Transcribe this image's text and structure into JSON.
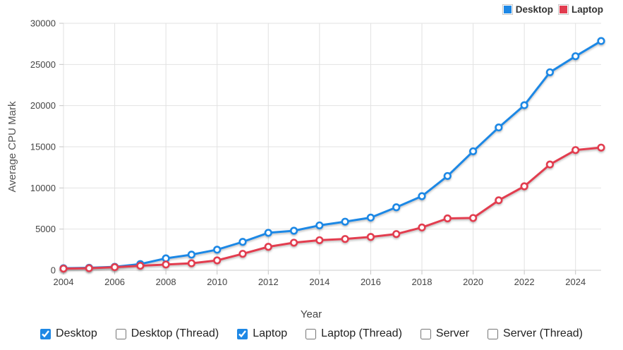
{
  "chart_data": {
    "type": "line",
    "title": "",
    "xlabel": "Year",
    "ylabel": "Average CPU Mark",
    "x": [
      2004,
      2005,
      2006,
      2007,
      2008,
      2009,
      2010,
      2011,
      2012,
      2013,
      2014,
      2015,
      2016,
      2017,
      2018,
      2019,
      2020,
      2021,
      2022,
      2023,
      2024,
      2025
    ],
    "series": [
      {
        "name": "Desktop",
        "color": "#1E88E5",
        "values": [
          250,
          300,
          420,
          750,
          1450,
          1900,
          2500,
          3450,
          4550,
          4800,
          5450,
          5900,
          6400,
          7650,
          9000,
          11450,
          14450,
          17350,
          20050,
          24050,
          26000,
          27850
        ]
      },
      {
        "name": "Laptop",
        "color": "#E23C4F",
        "values": [
          200,
          250,
          380,
          550,
          700,
          850,
          1200,
          2000,
          2850,
          3350,
          3650,
          3800,
          4050,
          4400,
          5200,
          6300,
          6350,
          8500,
          10200,
          12850,
          14600,
          14900
        ]
      }
    ],
    "ylim": [
      0,
      30000
    ],
    "y_ticks": [
      0,
      5000,
      10000,
      15000,
      20000,
      25000,
      30000
    ],
    "x_ticks": [
      2004,
      2006,
      2008,
      2010,
      2012,
      2014,
      2016,
      2018,
      2020,
      2022,
      2024
    ],
    "grid": true,
    "legend_position": "top-right",
    "point_style": "open-circle"
  },
  "legend": {
    "items": [
      {
        "label": "Desktop",
        "color": "#1E88E5"
      },
      {
        "label": "Laptop",
        "color": "#E23C4F"
      }
    ]
  },
  "controls": {
    "items": [
      {
        "label": "Desktop",
        "checked": true
      },
      {
        "label": "Desktop (Thread)",
        "checked": false
      },
      {
        "label": "Laptop",
        "checked": true
      },
      {
        "label": "Laptop (Thread)",
        "checked": false
      },
      {
        "label": "Server",
        "checked": false
      },
      {
        "label": "Server (Thread)",
        "checked": false
      }
    ]
  },
  "colors": {
    "grid": "#e2e2e2",
    "axis": "#cccccc",
    "tick": "#c4c4c4",
    "tick_label": "#444444",
    "checkbox_accent": "#1E88E5"
  }
}
